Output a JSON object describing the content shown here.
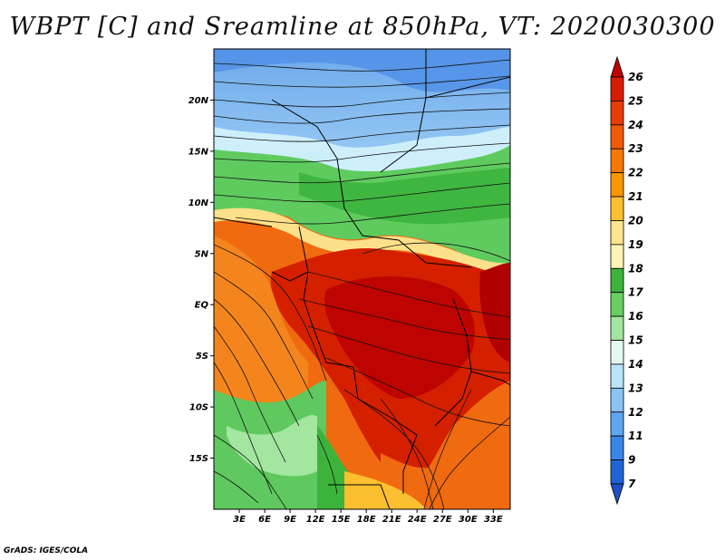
{
  "title": "WBPT [C] and Sreamline at 850hPa, VT: 2020030300",
  "credit": "GrADS: IGES/COLA",
  "map": {
    "lon_range": [
      0,
      35
    ],
    "lat_range": [
      -20,
      25
    ],
    "lat_labels": [
      "20N",
      "15N",
      "10N",
      "5N",
      "EQ",
      "5S",
      "10S",
      "15S"
    ],
    "lon_labels": [
      "3E",
      "6E",
      "9E",
      "12E",
      "15E",
      "18E",
      "21E",
      "24E",
      "27E",
      "30E",
      "33E"
    ]
  },
  "colorbar": {
    "labels": [
      "26",
      "25",
      "24",
      "23",
      "22",
      "21",
      "20",
      "19",
      "18",
      "17",
      "16",
      "15",
      "14",
      "13",
      "12",
      "11",
      "9",
      "7"
    ],
    "colors": [
      "#c10000",
      "#d81c00",
      "#e83c00",
      "#f05a00",
      "#f57800",
      "#fa9600",
      "#fcbf30",
      "#fde48f",
      "#fff3b8",
      "#3cb43c",
      "#69cf63",
      "#a2e6a0",
      "#e2f8f0",
      "#b8e4f6",
      "#8ac4f5",
      "#5ea6f0",
      "#3a86e8",
      "#1f64d6",
      "#1f50c8"
    ]
  }
}
